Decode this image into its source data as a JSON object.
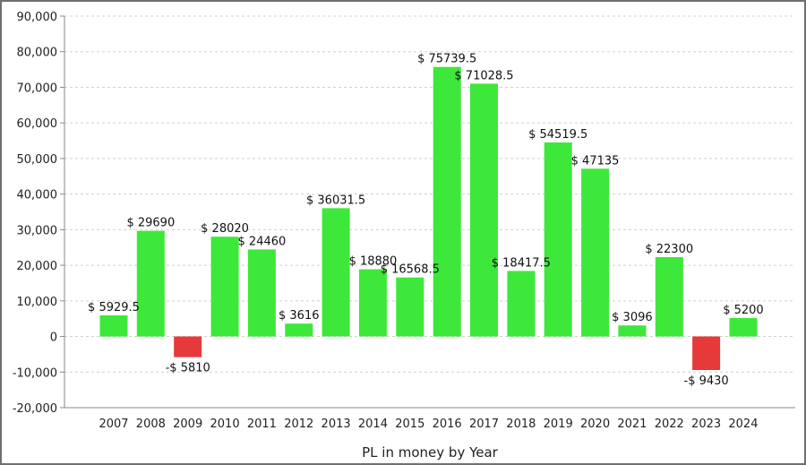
{
  "chart_data": {
    "type": "bar",
    "title": "",
    "xlabel": "PL in money by Year",
    "ylabel": "",
    "ylim": [
      -20000,
      90000
    ],
    "yticks": [
      -20000,
      -10000,
      0,
      10000,
      20000,
      30000,
      40000,
      50000,
      60000,
      70000,
      80000,
      90000
    ],
    "ytick_labels": [
      "-20,000",
      "-10,000",
      "0",
      "10,000",
      "20,000",
      "30,000",
      "40,000",
      "50,000",
      "60,000",
      "70,000",
      "80,000",
      "90,000"
    ],
    "grid": true,
    "categories": [
      "2007",
      "2008",
      "2009",
      "2010",
      "2011",
      "2012",
      "2013",
      "2014",
      "2015",
      "2016",
      "2017",
      "2018",
      "2019",
      "2020",
      "2021",
      "2022",
      "2023",
      "2024"
    ],
    "values": [
      5929.5,
      29690,
      -5810,
      28020,
      24460,
      3616,
      36031.5,
      18880,
      16568.5,
      75739.5,
      71028.5,
      18417.5,
      54519.5,
      47135,
      3096,
      22300,
      -9430,
      5200
    ],
    "data_labels": [
      "$ 5929.5",
      "$ 29690",
      "-$ 5810",
      "$ 28020",
      "$ 24460",
      "$ 3616",
      "$ 36031.5",
      "$ 18880",
      "$ 16568.5",
      "$ 75739.5",
      "$ 71028.5",
      "$ 18417.5",
      "$ 54519.5",
      "$ 47135",
      "$ 3096",
      "$ 22300",
      "-$ 9430",
      "$ 5200"
    ],
    "colors": {
      "positive": "#3ee83a",
      "negative": "#e63a3a",
      "grid": "#d0d0d0",
      "axis": "#8a8a8a"
    }
  }
}
